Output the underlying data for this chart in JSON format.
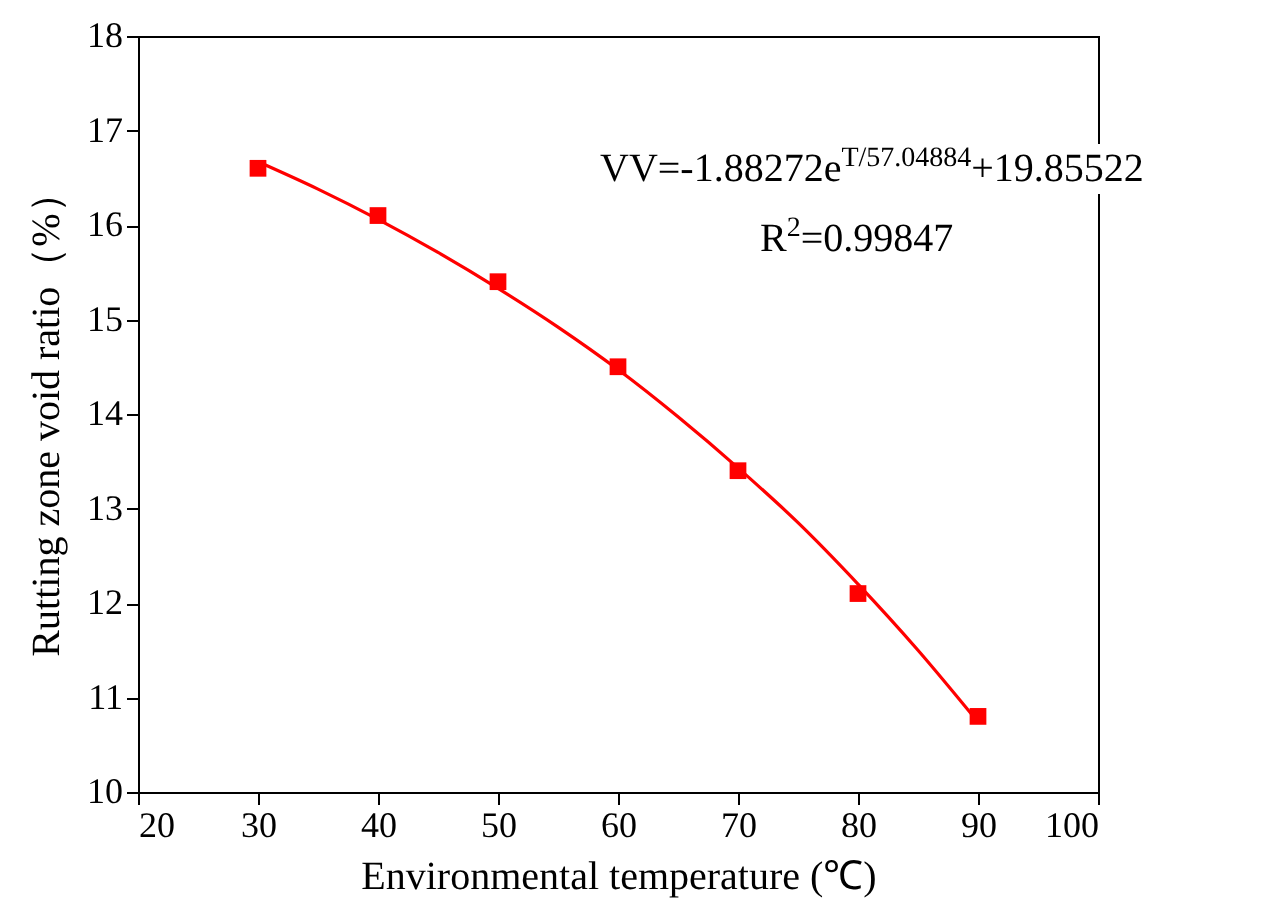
{
  "chart_data": {
    "type": "scatter",
    "xlabel": "Environmental temperature (℃)",
    "ylabel": "Rutting zone void ratio（%）",
    "x": [
      30,
      40,
      50,
      60,
      70,
      80,
      90
    ],
    "series": [
      {
        "color": "#ff0000",
        "marker": "square",
        "values": [
          16.6,
          16.1,
          15.4,
          14.5,
          13.4,
          12.1,
          10.8
        ]
      },
      {
        "type": "line",
        "color": "#ff0000",
        "marker": "none",
        "x": [
          30,
          35,
          40,
          45,
          50,
          55,
          60,
          65,
          70,
          75,
          80,
          85,
          90
        ],
        "values": [
          16.67,
          16.38,
          16.06,
          15.71,
          15.33,
          14.92,
          14.47,
          13.97,
          13.43,
          12.85,
          12.2,
          11.5,
          10.74
        ]
      }
    ],
    "annotations": [
      "VV=-1.88272e$^{T/57.04884}$+19.85522",
      "R$^{2}$=0.99847"
    ],
    "xlim": [
      20,
      100
    ],
    "xticks": [
      20,
      30,
      40,
      50,
      60,
      70,
      80,
      90,
      100
    ],
    "ylim": [
      10,
      18
    ],
    "yticks": [
      10,
      11,
      12,
      13,
      14,
      15,
      16,
      17,
      18
    ],
    "grid": false
  }
}
